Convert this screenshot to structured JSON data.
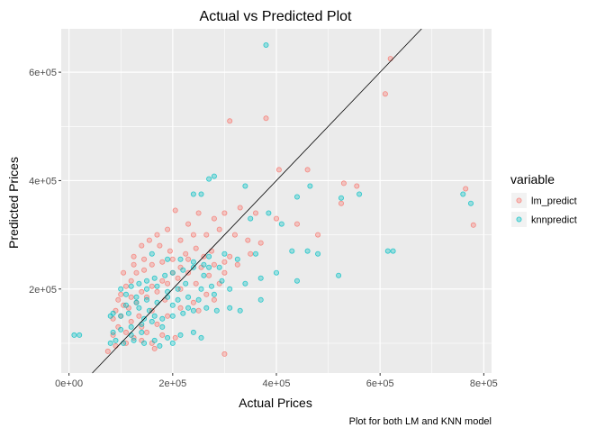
{
  "chart_data": {
    "type": "scatter",
    "title": "Actual vs Predicted Plot",
    "xlabel": "Actual Prices",
    "ylabel": "Predicted Prices",
    "caption": "Plot for both LM and KNN model",
    "xlim": [
      -15000,
      815000
    ],
    "ylim": [
      45000,
      680000
    ],
    "x_ticks": [
      0,
      200000,
      400000,
      600000,
      800000
    ],
    "x_tick_labels": [
      "0e+00",
      "2e+05",
      "4e+05",
      "6e+05",
      "8e+05"
    ],
    "y_ticks": [
      200000,
      400000,
      600000
    ],
    "y_tick_labels": [
      "2e+05",
      "4e+05",
      "6e+05"
    ],
    "grid": true,
    "legend": {
      "title": "variable",
      "position": "right"
    },
    "reference_line": {
      "slope": 1,
      "intercept": 0
    },
    "series": [
      {
        "name": "lm_predict",
        "color": "#F8766D",
        "points": [
          [
            620000,
            625000
          ],
          [
            610000,
            560000
          ],
          [
            380000,
            515000
          ],
          [
            310000,
            510000
          ],
          [
            460000,
            420000
          ],
          [
            405000,
            420000
          ],
          [
            530000,
            395000
          ],
          [
            555000,
            390000
          ],
          [
            765000,
            385000
          ],
          [
            780000,
            318000
          ],
          [
            525000,
            358000
          ],
          [
            480000,
            300000
          ],
          [
            440000,
            320000
          ],
          [
            400000,
            330000
          ],
          [
            360000,
            340000
          ],
          [
            330000,
            350000
          ],
          [
            300000,
            340000
          ],
          [
            280000,
            330000
          ],
          [
            250000,
            340000
          ],
          [
            230000,
            320000
          ],
          [
            205000,
            345000
          ],
          [
            190000,
            310000
          ],
          [
            170000,
            300000
          ],
          [
            155000,
            290000
          ],
          [
            140000,
            280000
          ],
          [
            125000,
            260000
          ],
          [
            215000,
            290000
          ],
          [
            240000,
            300000
          ],
          [
            265000,
            300000
          ],
          [
            290000,
            310000
          ],
          [
            320000,
            300000
          ],
          [
            345000,
            290000
          ],
          [
            370000,
            285000
          ],
          [
            350000,
            265000
          ],
          [
            310000,
            260000
          ],
          [
            275000,
            270000
          ],
          [
            245000,
            275000
          ],
          [
            225000,
            265000
          ],
          [
            200000,
            255000
          ],
          [
            180000,
            250000
          ],
          [
            160000,
            245000
          ],
          [
            145000,
            235000
          ],
          [
            130000,
            230000
          ],
          [
            120000,
            215000
          ],
          [
            110000,
            205000
          ],
          [
            100000,
            190000
          ],
          [
            95000,
            180000
          ],
          [
            90000,
            160000
          ],
          [
            85000,
            145000
          ],
          [
            100000,
            150000
          ],
          [
            115000,
            165000
          ],
          [
            130000,
            175000
          ],
          [
            150000,
            185000
          ],
          [
            170000,
            195000
          ],
          [
            190000,
            210000
          ],
          [
            210000,
            220000
          ],
          [
            230000,
            230000
          ],
          [
            255000,
            240000
          ],
          [
            280000,
            245000
          ],
          [
            300000,
            250000
          ],
          [
            325000,
            245000
          ],
          [
            200000,
            230000
          ],
          [
            180000,
            215000
          ],
          [
            160000,
            205000
          ],
          [
            140000,
            195000
          ],
          [
            120000,
            185000
          ],
          [
            105000,
            170000
          ],
          [
            95000,
            130000
          ],
          [
            110000,
            120000
          ],
          [
            125000,
            110000
          ],
          [
            140000,
            105000
          ],
          [
            160000,
            100000
          ],
          [
            180000,
            115000
          ],
          [
            205000,
            110000
          ],
          [
            90000,
            95000
          ],
          [
            75000,
            85000
          ],
          [
            85000,
            115000
          ],
          [
            150000,
            120000
          ],
          [
            170000,
            135000
          ],
          [
            190000,
            150000
          ],
          [
            215000,
            165000
          ],
          [
            240000,
            175000
          ],
          [
            265000,
            190000
          ],
          [
            290000,
            210000
          ],
          [
            135000,
            150000
          ],
          [
            160000,
            160000
          ],
          [
            185000,
            180000
          ],
          [
            215000,
            200000
          ],
          [
            245000,
            210000
          ],
          [
            270000,
            225000
          ],
          [
            300000,
            230000
          ],
          [
            230000,
            255000
          ],
          [
            260000,
            260000
          ],
          [
            215000,
            240000
          ],
          [
            195000,
            270000
          ],
          [
            175000,
            280000
          ],
          [
            300000,
            80000
          ],
          [
            165000,
            90000
          ],
          [
            145000,
            255000
          ],
          [
            125000,
            245000
          ],
          [
            105000,
            230000
          ],
          [
            250000,
            160000
          ],
          [
            280000,
            180000
          ],
          [
            120000,
            140000
          ],
          [
            140000,
            130000
          ],
          [
            110000,
            100000
          ]
        ]
      },
      {
        "name": "knnpredict",
        "color": "#00BFC4",
        "points": [
          [
            380000,
            650000
          ],
          [
            280000,
            408000
          ],
          [
            270000,
            403000
          ],
          [
            340000,
            390000
          ],
          [
            465000,
            390000
          ],
          [
            560000,
            375000
          ],
          [
            760000,
            375000
          ],
          [
            775000,
            358000
          ],
          [
            440000,
            370000
          ],
          [
            525000,
            368000
          ],
          [
            240000,
            375000
          ],
          [
            255000,
            375000
          ],
          [
            385000,
            340000
          ],
          [
            350000,
            330000
          ],
          [
            410000,
            320000
          ],
          [
            430000,
            270000
          ],
          [
            460000,
            270000
          ],
          [
            480000,
            265000
          ],
          [
            360000,
            265000
          ],
          [
            325000,
            255000
          ],
          [
            300000,
            265000
          ],
          [
            270000,
            260000
          ],
          [
            290000,
            240000
          ],
          [
            260000,
            245000
          ],
          [
            240000,
            240000
          ],
          [
            220000,
            235000
          ],
          [
            200000,
            230000
          ],
          [
            185000,
            225000
          ],
          [
            165000,
            220000
          ],
          [
            150000,
            215000
          ],
          [
            135000,
            210000
          ],
          [
            120000,
            205000
          ],
          [
            100000,
            200000
          ],
          [
            100000,
            150000
          ],
          [
            85000,
            155000
          ],
          [
            80000,
            150000
          ],
          [
            110000,
            170000
          ],
          [
            130000,
            175000
          ],
          [
            150000,
            180000
          ],
          [
            170000,
            175000
          ],
          [
            190000,
            185000
          ],
          [
            210000,
            180000
          ],
          [
            230000,
            185000
          ],
          [
            250000,
            180000
          ],
          [
            280000,
            190000
          ],
          [
            310000,
            200000
          ],
          [
            340000,
            210000
          ],
          [
            370000,
            220000
          ],
          [
            400000,
            230000
          ],
          [
            440000,
            215000
          ],
          [
            520000,
            225000
          ],
          [
            625000,
            270000
          ],
          [
            615000,
            270000
          ],
          [
            310000,
            165000
          ],
          [
            285000,
            160000
          ],
          [
            265000,
            165000
          ],
          [
            240000,
            160000
          ],
          [
            220000,
            155000
          ],
          [
            200000,
            150000
          ],
          [
            180000,
            145000
          ],
          [
            160000,
            140000
          ],
          [
            140000,
            135000
          ],
          [
            120000,
            130000
          ],
          [
            100000,
            125000
          ],
          [
            85000,
            120000
          ],
          [
            90000,
            105000
          ],
          [
            105000,
            100000
          ],
          [
            125000,
            105000
          ],
          [
            145000,
            100000
          ],
          [
            165000,
            105000
          ],
          [
            190000,
            110000
          ],
          [
            215000,
            115000
          ],
          [
            240000,
            120000
          ],
          [
            180000,
            130000
          ],
          [
            155000,
            160000
          ],
          [
            135000,
            165000
          ],
          [
            115000,
            155000
          ],
          [
            200000,
            170000
          ],
          [
            230000,
            165000
          ],
          [
            255000,
            200000
          ],
          [
            275000,
            205000
          ],
          [
            295000,
            215000
          ],
          [
            160000,
            265000
          ],
          [
            190000,
            255000
          ],
          [
            215000,
            255000
          ],
          [
            240000,
            250000
          ],
          [
            270000,
            240000
          ],
          [
            150000,
            200000
          ],
          [
            170000,
            205000
          ],
          [
            190000,
            195000
          ],
          [
            210000,
            200000
          ],
          [
            20000,
            115000
          ],
          [
            10000,
            115000
          ],
          [
            80000,
            100000
          ],
          [
            140000,
            120000
          ],
          [
            120000,
            115000
          ],
          [
            200000,
            100000
          ],
          [
            175000,
            95000
          ],
          [
            255000,
            110000
          ],
          [
            145000,
            145000
          ],
          [
            165000,
            150000
          ],
          [
            130000,
            185000
          ],
          [
            110000,
            190000
          ],
          [
            370000,
            180000
          ],
          [
            330000,
            160000
          ],
          [
            225000,
            210000
          ],
          [
            260000,
            225000
          ]
        ]
      }
    ]
  }
}
